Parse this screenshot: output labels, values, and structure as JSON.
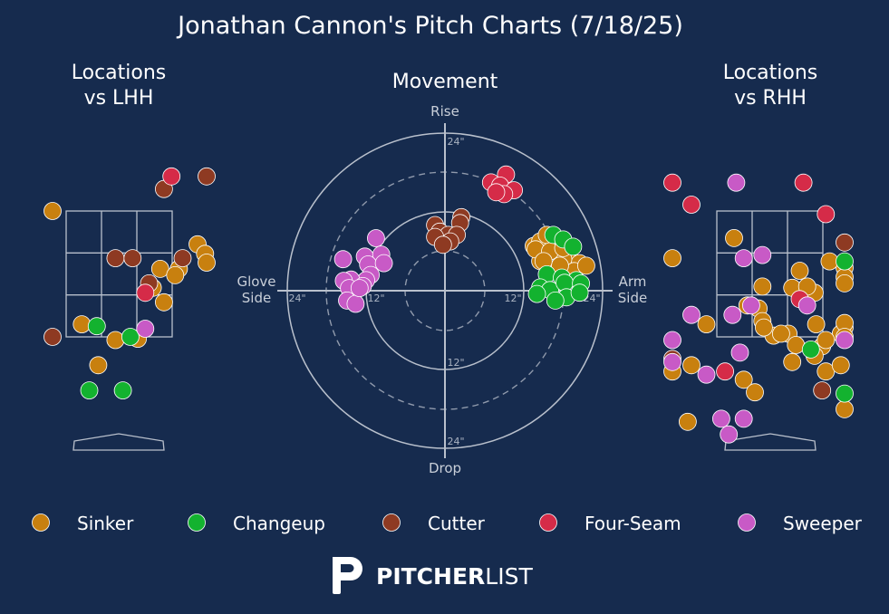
{
  "title": "Jonathan Cannon's Pitch Charts (7/18/25)",
  "panels": {
    "lhh_title": [
      "Locations",
      "vs LHH"
    ],
    "movement_title": "Movement",
    "rhh_title": [
      "Locations",
      "vs RHH"
    ]
  },
  "movement_labels": {
    "rise": "Rise",
    "drop": "Drop",
    "glove": [
      "Glove",
      "Side"
    ],
    "arm": [
      "Arm",
      "Side"
    ],
    "ticks": {
      "r12": "12\"",
      "r24": "24\""
    }
  },
  "colors": {
    "background": "#162b4e",
    "grid": "#b9c0cc",
    "Sinker": "#c8800f",
    "Changeup": "#13b22f",
    "Cutter": "#8e3a22",
    "Four-Seam": "#d52b48",
    "Sweeper": "#c85ac6"
  },
  "legend": [
    "Sinker",
    "Changeup",
    "Cutter",
    "Four-Seam",
    "Sweeper"
  ],
  "brand": {
    "bold": "PITCHER",
    "light": "LIST"
  },
  "chart_data": [
    {
      "type": "scatter",
      "title": "Locations vs LHH",
      "units": "plate x/z (ft, catcher view)",
      "series": [
        {
          "name": "Sinker",
          "points": [
            [
              1.05,
              2.97
            ],
            [
              1.15,
              2.82
            ],
            [
              1.28,
              2.68
            ],
            [
              0.55,
              2.58
            ],
            [
              0.8,
              2.58
            ],
            [
              0.75,
              2.48
            ],
            [
              0.45,
              2.28
            ],
            [
              0.6,
              2.05
            ],
            [
              -0.5,
              1.7
            ],
            [
              -0.05,
              1.45
            ],
            [
              0.25,
              1.47
            ],
            [
              -0.28,
              1.05
            ],
            [
              -1.22,
              3.5
            ]
          ]
        },
        {
          "name": "Changeup",
          "points": [
            [
              -0.3,
              1.67
            ],
            [
              0.15,
              1.5
            ],
            [
              -0.4,
              0.65
            ],
            [
              0.05,
              0.65
            ]
          ]
        },
        {
          "name": "Cutter",
          "points": [
            [
              -0.05,
              2.75
            ],
            [
              0.18,
              2.75
            ],
            [
              0.85,
              2.75
            ],
            [
              0.6,
              3.85
            ],
            [
              1.5,
              4.05
            ],
            [
              -1.8,
              1.5
            ],
            [
              0.4,
              2.35
            ]
          ]
        },
        {
          "name": "Four-Seam",
          "points": [
            [
              0.7,
              4.05
            ],
            [
              0.35,
              2.2
            ]
          ]
        },
        {
          "name": "Sweeper",
          "points": [
            [
              0.35,
              1.63
            ]
          ]
        }
      ]
    },
    {
      "type": "scatter",
      "title": "Movement",
      "xlabel": "Glove Side / Arm Side (in)",
      "ylabel": "Drop / Rise (in)",
      "xlim": [
        -28,
        28
      ],
      "ylim": [
        -28,
        28
      ],
      "rings": [
        12,
        24
      ],
      "series": [
        {
          "name": "Sinker",
          "points": [
            [
              13.5,
              6.8
            ],
            [
              14.5,
              7.5
            ],
            [
              15.5,
              8.5
            ],
            [
              16.8,
              6.3
            ],
            [
              18.5,
              5.2
            ],
            [
              20.5,
              4.2
            ],
            [
              18,
              4.8
            ],
            [
              16.3,
              3.2
            ],
            [
              14.5,
              4.5
            ],
            [
              13.8,
              6.3
            ],
            [
              19.7,
              3
            ],
            [
              17.5,
              3.8
            ],
            [
              16,
              6
            ],
            [
              15,
              4.5
            ],
            [
              18,
              6.5
            ],
            [
              21.5,
              3.8
            ]
          ]
        },
        {
          "name": "Changeup",
          "points": [
            [
              16.5,
              8.5
            ],
            [
              18,
              7.8
            ],
            [
              19.5,
              6.7
            ],
            [
              15.5,
              2.5
            ],
            [
              17.8,
              2
            ],
            [
              20,
              1.6
            ],
            [
              14.5,
              0.5
            ],
            [
              16,
              0.1
            ],
            [
              18.2,
              1.2
            ],
            [
              20.7,
              1.1
            ],
            [
              14,
              -0.5
            ],
            [
              18.5,
              -1
            ],
            [
              16.8,
              -1.5
            ],
            [
              20.5,
              -0.3
            ]
          ]
        },
        {
          "name": "Cutter",
          "points": [
            [
              -1.5,
              10
            ],
            [
              2.5,
              11.2
            ],
            [
              2.3,
              10.3
            ],
            [
              -0.8,
              9
            ],
            [
              0.5,
              8.5
            ],
            [
              1.8,
              8.5
            ],
            [
              -1.5,
              8.2
            ],
            [
              0.8,
              7.5
            ],
            [
              -0.3,
              7
            ]
          ]
        },
        {
          "name": "Four-Seam",
          "points": [
            [
              7,
              16.5
            ],
            [
              9.3,
              17.7
            ],
            [
              8.4,
              16
            ],
            [
              10.5,
              15.3
            ],
            [
              9,
              14.7
            ],
            [
              7.8,
              15
            ]
          ]
        },
        {
          "name": "Sweeper",
          "points": [
            [
              -10.5,
              8
            ],
            [
              -12.2,
              5.2
            ],
            [
              -9.7,
              5.5
            ],
            [
              -11.7,
              4
            ],
            [
              -9.3,
              4.2
            ],
            [
              -11.3,
              2.4
            ],
            [
              -15.5,
              4.8
            ],
            [
              -12,
              1.6
            ],
            [
              -14.3,
              1.7
            ],
            [
              -12.5,
              0.7
            ],
            [
              -15.4,
              1.5
            ],
            [
              -14.6,
              0.4
            ],
            [
              -14.9,
              -1.5
            ],
            [
              -13.6,
              -2
            ],
            [
              -13,
              0.4
            ]
          ]
        }
      ]
    },
    {
      "type": "scatter",
      "title": "Locations vs RHH",
      "units": "plate x/z (ft, catcher view)",
      "series": [
        {
          "name": "Sinker",
          "points": [
            [
              -0.48,
              3.07
            ],
            [
              0.6,
              2.2
            ],
            [
              1.8,
              2.6
            ],
            [
              -0.1,
              2.3
            ],
            [
              0.3,
              2.28
            ],
            [
              0.4,
              2.55
            ],
            [
              0.8,
              2.7
            ],
            [
              1.45,
              2.45
            ],
            [
              0.7,
              1.35
            ],
            [
              1.2,
              1.65
            ],
            [
              0.95,
              1.55
            ],
            [
              -0.15,
              1.95
            ],
            [
              0.05,
              1.52
            ],
            [
              0.25,
              1.55
            ],
            [
              -1.4,
              2.75
            ],
            [
              -0.85,
              1.7
            ],
            [
              0.5,
              2.3
            ],
            [
              -0.3,
              2.0
            ],
            [
              -0.1,
              1.75
            ],
            [
              0.75,
              1.45
            ],
            [
              1.15,
              1.72
            ],
            [
              1.3,
              2.35
            ],
            [
              0.35,
              1.37
            ],
            [
              -0.08,
              1.65
            ],
            [
              0.15,
              1.55
            ],
            [
              0.62,
              1.7
            ],
            [
              0.6,
              1.2
            ],
            [
              -1.05,
              1.05
            ],
            [
              0.3,
              1.1
            ],
            [
              0.75,
              0.95
            ],
            [
              0.95,
              1.05
            ],
            [
              1.05,
              0.35
            ],
            [
              -0.35,
              0.82
            ],
            [
              -1.55,
              0.95
            ],
            [
              -0.2,
              0.62
            ],
            [
              2.15,
              1.5
            ],
            [
              -1.1,
              0.15
            ]
          ]
        },
        {
          "name": "Changeup",
          "points": [
            [
              1.05,
              2.7
            ],
            [
              0.55,
              1.3
            ],
            [
              1.2,
              0.6
            ]
          ]
        },
        {
          "name": "Cutter",
          "points": [
            [
              1.45,
              3.0
            ],
            [
              -1.6,
              1.15
            ],
            [
              0.7,
              0.65
            ]
          ]
        },
        {
          "name": "Four-Seam",
          "points": [
            [
              -1.6,
              3.95
            ],
            [
              -1.05,
              3.6
            ],
            [
              0.45,
              3.95
            ],
            [
              0.75,
              3.45
            ],
            [
              0.4,
              2.1
            ],
            [
              -0.6,
              0.95
            ]
          ]
        },
        {
          "name": "Sweeper",
          "points": [
            [
              -0.45,
              3.95
            ],
            [
              -0.35,
              2.75
            ],
            [
              -0.1,
              2.8
            ],
            [
              -1.05,
              1.85
            ],
            [
              -0.5,
              1.85
            ],
            [
              -0.25,
              2.0
            ],
            [
              0.5,
              2.0
            ],
            [
              1.3,
              1.45
            ],
            [
              -0.4,
              1.25
            ],
            [
              -0.85,
              0.9
            ],
            [
              -0.65,
              0.2
            ],
            [
              -0.35,
              0.2
            ],
            [
              -0.55,
              -0.05
            ],
            [
              -1.6,
              1.1
            ],
            [
              -1.55,
              1.45
            ]
          ]
        }
      ]
    }
  ]
}
